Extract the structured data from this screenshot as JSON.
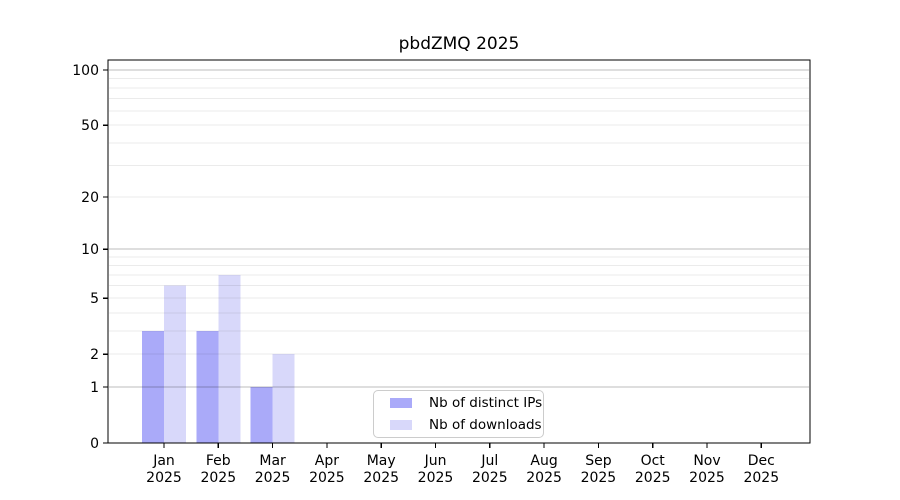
{
  "chart_data": {
    "type": "bar",
    "title": "pbdZMQ 2025",
    "categories": [
      "Jan",
      "Feb",
      "Mar",
      "Apr",
      "May",
      "Jun",
      "Jul",
      "Aug",
      "Sep",
      "Oct",
      "Nov",
      "Dec"
    ],
    "category_year": "2025",
    "series": [
      {
        "name": "Nb of distinct IPs",
        "color": "#aaaaf9",
        "values": [
          3,
          3,
          1,
          0,
          0,
          0,
          0,
          0,
          0,
          0,
          0,
          0
        ]
      },
      {
        "name": "Nb of downloads",
        "color": "#d8d8fa",
        "values": [
          6,
          7,
          2,
          0,
          0,
          0,
          0,
          0,
          0,
          0,
          0,
          0
        ]
      }
    ],
    "yscale": "log1p",
    "yticks": [
      0,
      1,
      2,
      5,
      10,
      20,
      50,
      100
    ],
    "ylim": [
      0,
      114
    ],
    "grid": {
      "minor_values": [
        2,
        3,
        4,
        5,
        6,
        7,
        8,
        9,
        20,
        30,
        40,
        50,
        60,
        70,
        80,
        90
      ],
      "major_values": [
        1,
        10,
        100
      ],
      "minor_color": "rgba(0,0,0,0.08)",
      "major_color": "rgba(0,0,0,0.26)"
    },
    "legend_position": "bottom-center",
    "axis_color": "#000000",
    "text_color": "#000000",
    "background_color": "#ffffff"
  }
}
